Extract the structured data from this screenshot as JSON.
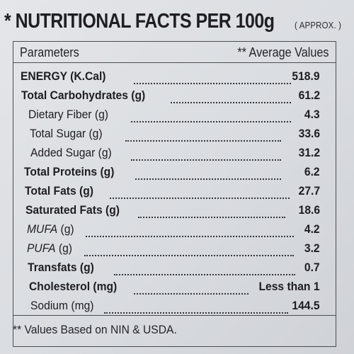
{
  "title": {
    "main": "* NUTRITIONAL FACTS PER 100g",
    "approx": "( APPROX. )"
  },
  "table": {
    "header_left": "Parameters",
    "header_right": "** Average Values",
    "rows": [
      {
        "label": "ENERGY (K.Cal)",
        "value": "518.9"
      },
      {
        "label": "Total Carbohydrates (g)",
        "value": "61.2"
      },
      {
        "label": "Dietary Fiber (g)",
        "value": "4.3"
      },
      {
        "label": "Total Sugar (g)",
        "value": "33.6"
      },
      {
        "label": "Added Sugar (g)",
        "value": "31.2"
      },
      {
        "label": "Total Proteins (g)",
        "value": "6.2"
      },
      {
        "label": "Total Fats (g)",
        "value": "27.7"
      },
      {
        "label": "Saturated Fats (g)",
        "value": "18.6"
      },
      {
        "label_italic": "MUFA",
        "label_rest": " (g)",
        "value": "4.2"
      },
      {
        "label_italic": "PUFA",
        "label_rest": " (g)",
        "value": "3.2"
      },
      {
        "label": "Transfats (g)",
        "value": "0.7"
      },
      {
        "label": "Cholesterol (mg)",
        "value": "Less than 1"
      },
      {
        "label": "Sodium (mg)",
        "value": "144.5"
      }
    ]
  },
  "footer": "** Values Based on NIN & USDA."
}
